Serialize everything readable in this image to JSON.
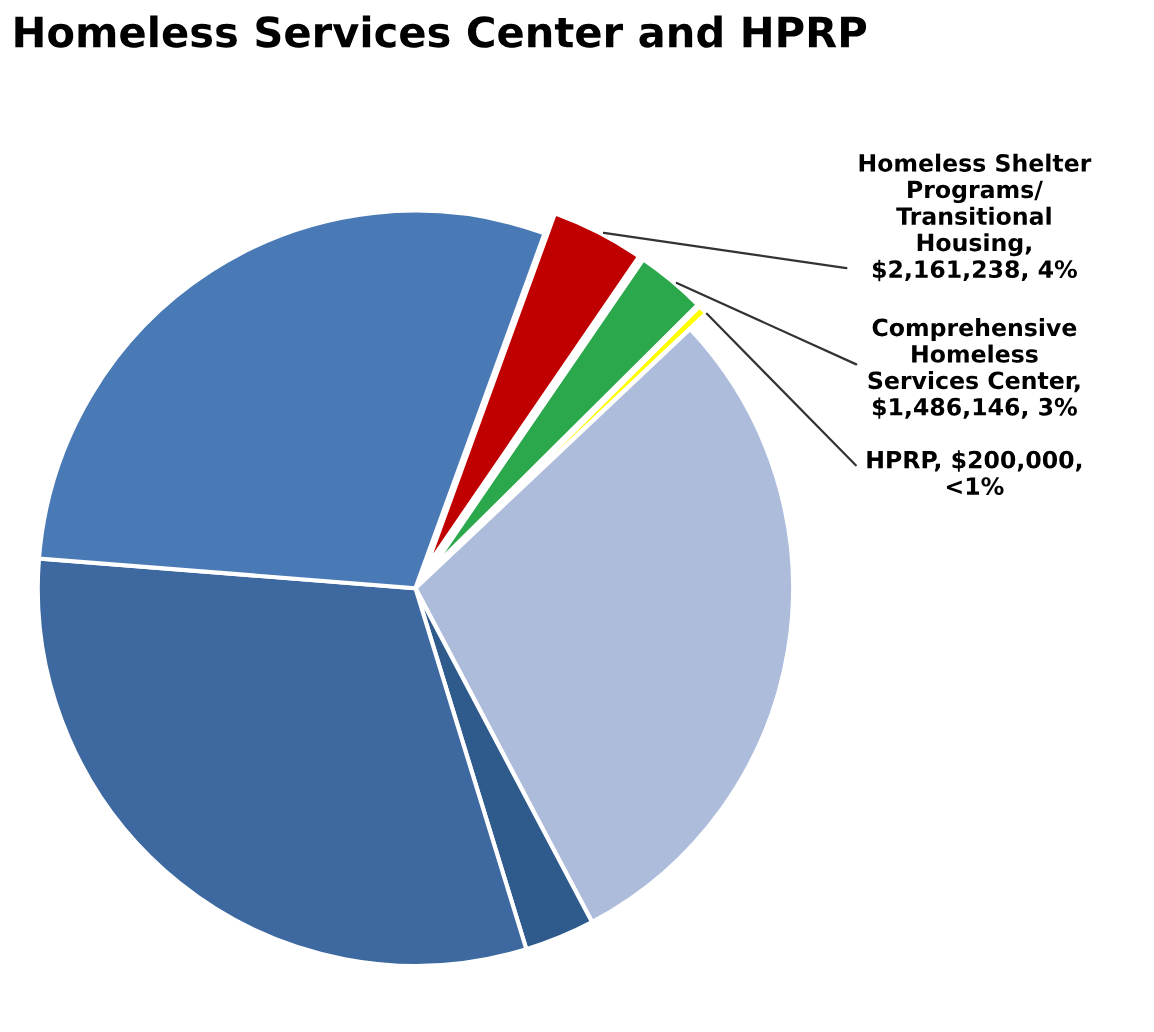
{
  "chart_data": {
    "type": "pie",
    "title": "Homeless Services Center and HPRP",
    "categories": [
      "Homeless Shelter\nPrograms/\nTransitional\nHousing,\n$2,161,238, 4%",
      "Comprehensive\nHomeless\nServices Center,\n$1,486,146, 3%",
      "HPRP, $200,000,\n<1%",
      null,
      null,
      null,
      null
    ],
    "values": [
      4,
      3,
      0.4,
      29.3,
      3,
      31,
      29.3
    ],
    "colors": [
      "#c00000",
      "#2ca84c",
      "#ffff00",
      "#aebcdc",
      "#2f5a8c",
      "#3d68a0",
      "#4a7ab6"
    ],
    "legend": false
  }
}
